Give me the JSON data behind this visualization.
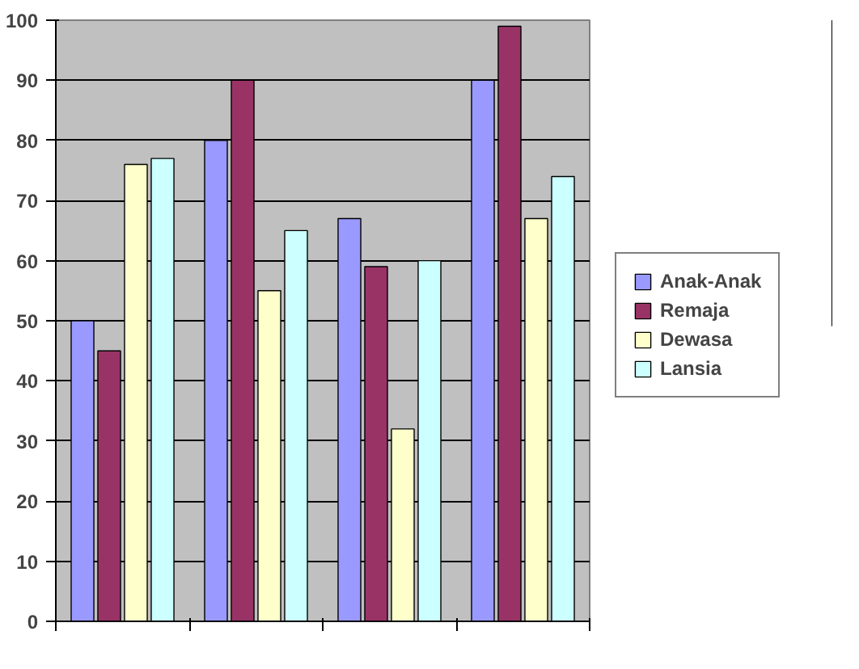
{
  "chart_data": {
    "type": "bar",
    "categories": [
      null,
      null,
      null,
      null
    ],
    "series": [
      {
        "name": "Anak-Anak",
        "color": "#9999ff",
        "values": [
          50,
          80,
          67,
          90
        ]
      },
      {
        "name": "Remaja",
        "color": "#993366",
        "values": [
          45,
          90,
          59,
          99
        ]
      },
      {
        "name": "Dewasa",
        "color": "#ffffcc",
        "values": [
          76,
          55,
          32,
          67
        ]
      },
      {
        "name": "Lansia",
        "color": "#ccffff",
        "values": [
          77,
          65,
          60,
          74
        ]
      }
    ],
    "ylim": [
      0,
      100
    ],
    "yticks": [
      0,
      10,
      20,
      30,
      40,
      50,
      60,
      70,
      80,
      90,
      100
    ],
    "grid": "y",
    "legend": "right",
    "tick_labels": "y"
  }
}
